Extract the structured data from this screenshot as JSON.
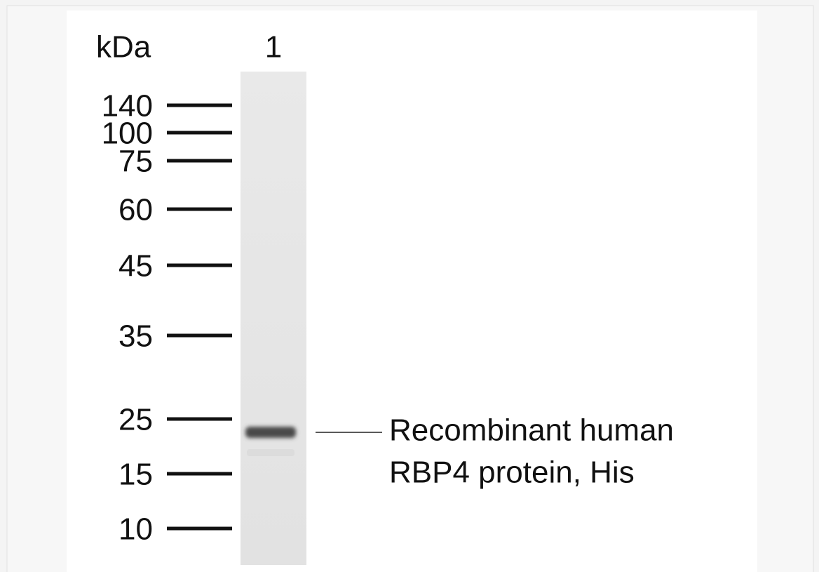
{
  "unit_label": "kDa",
  "lane_label": "1",
  "markers": [
    "140",
    "100",
    "75",
    "60",
    "45",
    "35",
    "25",
    "15",
    "10"
  ],
  "band_annotation": [
    "Recombinant human",
    "RBP4 protein, His"
  ]
}
